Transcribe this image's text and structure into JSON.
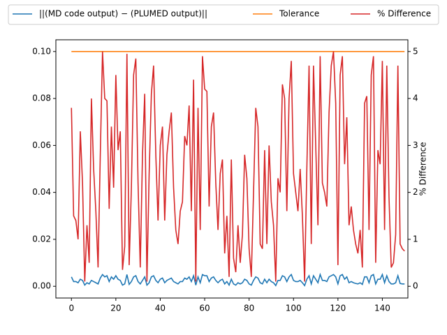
{
  "chart_data": {
    "type": "line",
    "x": [
      0,
      1,
      2,
      3,
      4,
      5,
      6,
      7,
      8,
      9,
      10,
      11,
      12,
      13,
      14,
      15,
      16,
      17,
      18,
      19,
      20,
      21,
      22,
      23,
      24,
      25,
      26,
      27,
      28,
      29,
      30,
      31,
      32,
      33,
      34,
      35,
      36,
      37,
      38,
      39,
      40,
      41,
      42,
      43,
      44,
      45,
      46,
      47,
      48,
      49,
      50,
      51,
      52,
      53,
      54,
      55,
      56,
      57,
      58,
      59,
      60,
      61,
      62,
      63,
      64,
      65,
      66,
      67,
      68,
      69,
      70,
      71,
      72,
      73,
      74,
      75,
      76,
      77,
      78,
      79,
      80,
      81,
      82,
      83,
      84,
      85,
      86,
      87,
      88,
      89,
      90,
      91,
      92,
      93,
      94,
      95,
      96,
      97,
      98,
      99,
      100,
      101,
      102,
      103,
      104,
      105,
      106,
      107,
      108,
      109,
      110,
      111,
      112,
      113,
      114,
      115,
      116,
      117,
      118,
      119,
      120,
      121,
      122,
      123,
      124,
      125,
      126,
      127,
      128,
      129,
      130,
      131,
      132,
      133,
      134,
      135,
      136,
      137,
      138,
      139,
      140,
      141,
      142,
      143,
      144,
      145,
      146,
      147,
      148,
      149,
      150
    ],
    "series": [
      {
        "name": "||(MD code output) − (PLUMED output)||",
        "color": "#1f77b4",
        "axis": "y",
        "values": [
          0.004,
          0.002,
          0.002,
          0.0015,
          0.003,
          0.0025,
          0.0005,
          0.0015,
          0.001,
          0.0025,
          0.002,
          0.0015,
          0.001,
          0.0035,
          0.005,
          0.004,
          0.0045,
          0.002,
          0.004,
          0.003,
          0.0045,
          0.003,
          0.0025,
          0.0005,
          0.001,
          0.005,
          0.0008,
          0.002,
          0.004,
          0.0045,
          0.002,
          0.001,
          0.0025,
          0.004,
          0.0005,
          0.0015,
          0.004,
          0.0045,
          0.0025,
          0.0015,
          0.003,
          0.0035,
          0.0015,
          0.0025,
          0.003,
          0.0035,
          0.002,
          0.0015,
          0.001,
          0.002,
          0.002,
          0.0035,
          0.003,
          0.004,
          0.002,
          0.0045,
          0.0005,
          0.004,
          0.0015,
          0.005,
          0.0045,
          0.0045,
          0.002,
          0.0035,
          0.004,
          0.0025,
          0.0015,
          0.0025,
          0.003,
          0.001,
          0.002,
          0.0005,
          0.003,
          0.001,
          0.0005,
          0.0015,
          0.001,
          0.0015,
          0.003,
          0.0025,
          0.001,
          0.0005,
          0.0025,
          0.004,
          0.0035,
          0.0015,
          0.001,
          0.003,
          0.0015,
          0.003,
          0.002,
          0.0015,
          0.0003,
          0.0025,
          0.0025,
          0.0045,
          0.004,
          0.002,
          0.004,
          0.005,
          0.0025,
          0.002,
          0.002,
          0.0025,
          0.0015,
          0.0003,
          0.003,
          0.0045,
          0.001,
          0.0045,
          0.003,
          0.0015,
          0.005,
          0.0025,
          0.0025,
          0.002,
          0.004,
          0.0045,
          0.005,
          0.004,
          0.001,
          0.0045,
          0.005,
          0.003,
          0.004,
          0.0015,
          0.002,
          0.0015,
          0.0012,
          0.001,
          0.0015,
          0.0008,
          0.004,
          0.004,
          0.0015,
          0.0045,
          0.005,
          0.001,
          0.003,
          0.003,
          0.005,
          0.0015,
          0.0045,
          0.002,
          0.001,
          0.001,
          0.0015,
          0.0045,
          0.0012,
          0.001,
          0.001
        ]
      },
      {
        "name": "Tolerance",
        "color": "#ff7f0e",
        "axis": "y",
        "x": [
          0,
          150
        ],
        "values": [
          0.1,
          0.1
        ]
      },
      {
        "name": "% Difference",
        "color": "#d62728",
        "axis": "y2",
        "values": [
          3.8,
          1.5,
          1.4,
          1.0,
          3.3,
          2.2,
          0.1,
          1.3,
          0.5,
          4.0,
          2.5,
          1.6,
          0.4,
          2.8,
          5.0,
          4.0,
          3.95,
          1.65,
          3.4,
          2.1,
          4.5,
          2.9,
          3.3,
          0.35,
          0.85,
          4.95,
          0.45,
          2.1,
          4.5,
          4.85,
          2.2,
          0.4,
          2.8,
          4.1,
          0.1,
          2.4,
          4.1,
          4.7,
          2.8,
          1.4,
          3.0,
          3.4,
          1.4,
          2.8,
          3.3,
          3.7,
          2.1,
          1.2,
          0.9,
          1.6,
          1.8,
          3.2,
          3.0,
          3.85,
          1.6,
          4.4,
          0.1,
          3.8,
          1.2,
          4.9,
          4.2,
          4.15,
          1.7,
          3.4,
          3.7,
          2.2,
          1.2,
          2.4,
          2.7,
          0.7,
          1.5,
          0.2,
          2.7,
          0.6,
          0.3,
          1.3,
          0.5,
          1.1,
          2.8,
          2.3,
          0.8,
          0.2,
          2.0,
          3.8,
          3.4,
          0.9,
          0.8,
          2.9,
          0.9,
          3.0,
          1.8,
          1.3,
          0.1,
          2.3,
          2.0,
          4.3,
          4.0,
          1.6,
          4.0,
          4.8,
          2.4,
          2.0,
          1.6,
          2.5,
          1.5,
          0.1,
          2.5,
          4.7,
          0.9,
          4.7,
          3.0,
          1.3,
          4.9,
          2.2,
          2.0,
          1.7,
          3.7,
          4.7,
          5.0,
          3.9,
          0.45,
          4.5,
          4.9,
          2.6,
          3.6,
          1.3,
          1.7,
          1.2,
          0.9,
          0.7,
          1.2,
          0.4,
          3.9,
          4.05,
          1.2,
          4.5,
          4.9,
          0.5,
          2.9,
          2.6,
          4.8,
          1.2,
          4.7,
          1.9,
          0.4,
          0.5,
          1.1,
          4.7,
          0.9,
          0.8,
          0.75
        ]
      }
    ],
    "xlim": [
      -7,
      151.5
    ],
    "xticks": [
      0,
      20,
      40,
      60,
      80,
      100,
      120,
      140
    ],
    "ylim": [
      -0.005,
      0.105
    ],
    "yticks": [
      {
        "value": 0,
        "label": "0.00"
      },
      {
        "value": 0.02,
        "label": "0.02"
      },
      {
        "value": 0.04,
        "label": "0.04"
      },
      {
        "value": 0.06,
        "label": "0.06"
      },
      {
        "value": 0.08,
        "label": "0.08"
      },
      {
        "value": 0.1,
        "label": "0.10"
      }
    ],
    "y2lim": [
      -0.25,
      5.25
    ],
    "y2ticks": [
      0,
      1,
      2,
      3,
      4,
      5
    ],
    "y2label": "% Difference",
    "y2label_color": "#d62728"
  }
}
